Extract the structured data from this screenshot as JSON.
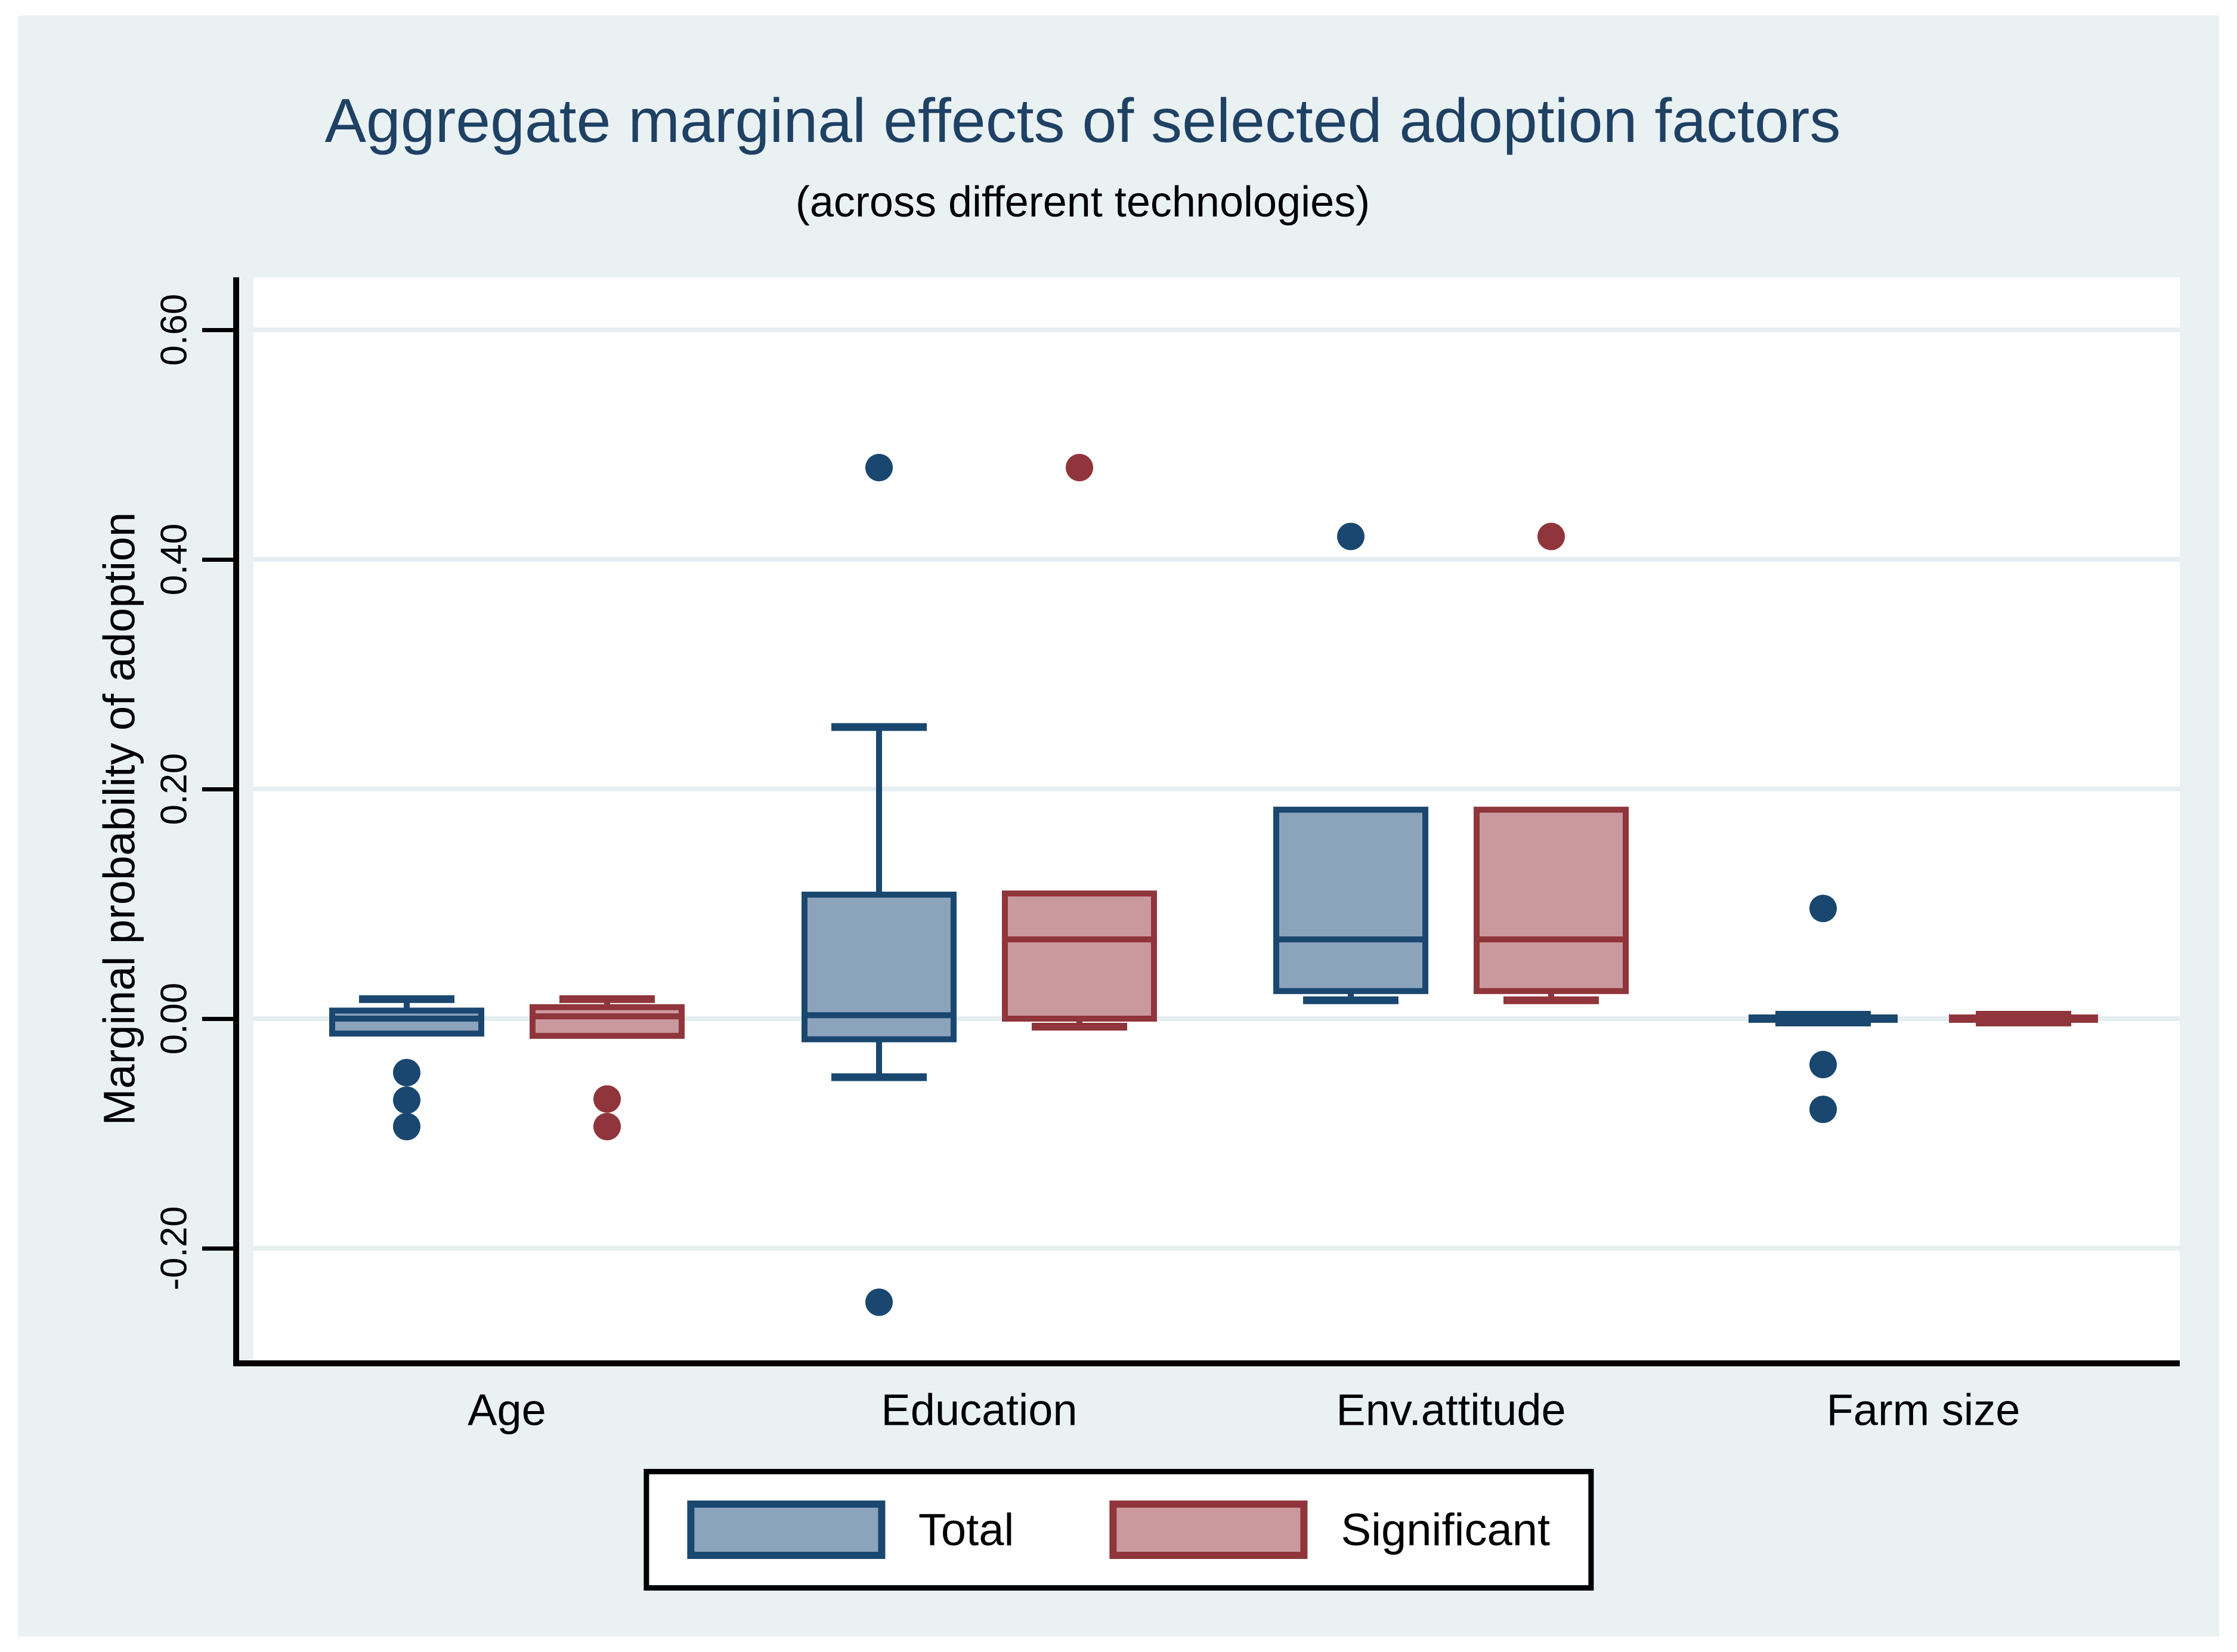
{
  "chart_data": {
    "type": "box",
    "title": "Aggregate marginal effects of selected adoption factors",
    "subtitle": "(across different technologies)",
    "ylabel": "Marginal probability of adoption",
    "xlabel": "",
    "categories": [
      "Age",
      "Education",
      "Env.attitude",
      "Farm size"
    ],
    "y_ticks": [
      {
        "value": 0.6,
        "label": "0.60"
      },
      {
        "value": 0.4,
        "label": "0.40"
      },
      {
        "value": 0.2,
        "label": "0.20"
      },
      {
        "value": 0.0,
        "label": "0.00"
      },
      {
        "value": -0.2,
        "label": "-0.20"
      }
    ],
    "ylim": [
      -0.3,
      0.65
    ],
    "grid": true,
    "legend_position": "bottom-center",
    "series": [
      {
        "name": "Total",
        "border_color": "#1A476F",
        "fill_color": "#8CA3BC",
        "boxes": [
          {
            "category": "Age",
            "low": -0.013,
            "q1": -0.013,
            "median": 0.0,
            "q3": 0.007,
            "high": 0.017,
            "outliers": [
              -0.047,
              -0.071,
              -0.094
            ]
          },
          {
            "category": "Education",
            "low": -0.051,
            "q1": -0.018,
            "median": 0.003,
            "q3": 0.108,
            "high": 0.254,
            "outliers": [
              0.48,
              -0.247
            ]
          },
          {
            "category": "Env.attitude",
            "low": 0.016,
            "q1": 0.024,
            "median": 0.069,
            "q3": 0.182,
            "high": 0.182,
            "outliers": [
              0.42
            ]
          },
          {
            "category": "Farm size",
            "low": 0.0,
            "q1": 0.0,
            "median": 0.0,
            "q3": 0.0,
            "high": 0.0,
            "outliers": [
              0.096,
              -0.04,
              -0.079
            ]
          }
        ]
      },
      {
        "name": "Significant",
        "border_color": "#90353B",
        "fill_color": "#C9999E",
        "boxes": [
          {
            "category": "Age",
            "low": -0.015,
            "q1": -0.015,
            "median": 0.002,
            "q3": 0.01,
            "high": 0.017,
            "outliers": [
              -0.07,
              -0.094
            ]
          },
          {
            "category": "Education",
            "low": -0.007,
            "q1": 0.0,
            "median": 0.069,
            "q3": 0.109,
            "high": 0.109,
            "outliers": [
              0.48
            ]
          },
          {
            "category": "Env.attitude",
            "low": 0.016,
            "q1": 0.024,
            "median": 0.069,
            "q3": 0.182,
            "high": 0.182,
            "outliers": [
              0.42
            ]
          },
          {
            "category": "Farm size",
            "low": 0.0,
            "q1": 0.0,
            "median": 0.0,
            "q3": 0.0,
            "high": 0.0,
            "outliers": []
          }
        ]
      }
    ]
  },
  "colors": {
    "canvas_background": "#EAF1F3",
    "plot_background": "#FFFFFF",
    "gridline": "#E6EEF1",
    "axis": "#000000",
    "title": "#1E4164",
    "text": "#000000",
    "total_border": "#1A476F",
    "total_fill": "#8CA3BC",
    "significant_border": "#90353B",
    "significant_fill": "#C9999E"
  }
}
